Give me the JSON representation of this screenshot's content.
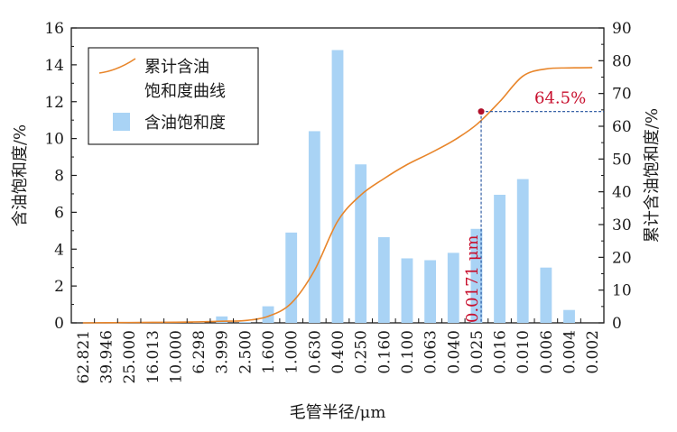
{
  "chart_data": {
    "type": "bar",
    "categories": [
      "62.821",
      "39.946",
      "25.000",
      "16.013",
      "10.000",
      "6.298",
      "3.999",
      "2.500",
      "1.600",
      "1.000",
      "0.630",
      "0.400",
      "0.250",
      "0.160",
      "0.100",
      "0.063",
      "0.040",
      "0.025",
      "0.016",
      "0.010",
      "0.006",
      "0.004",
      "0.002"
    ],
    "xlabel": "毛管半径/μm",
    "ylabel_left": "含油饱和度/%",
    "ylabel_right": "累计含油饱和度/%",
    "ylim_left": [
      0,
      16
    ],
    "ylim_right": [
      0,
      90
    ],
    "yticks_left": [
      "0",
      "2",
      "4",
      "6",
      "8",
      "10",
      "12",
      "14",
      "16"
    ],
    "yticks_right": [
      "0",
      "10",
      "20",
      "30",
      "40",
      "50",
      "60",
      "70",
      "80",
      "90"
    ],
    "series": [
      {
        "name": "含油饱和度",
        "type": "bar",
        "axis": "left",
        "color": "#a9d3f5",
        "values": [
          0,
          0,
          0,
          0,
          0,
          0.05,
          0.35,
          0.05,
          0.9,
          4.9,
          10.4,
          14.8,
          8.6,
          4.65,
          3.5,
          3.4,
          3.8,
          5.1,
          6.95,
          7.8,
          3.0,
          0.7,
          0
        ]
      },
      {
        "name": "累计含油饱和度曲线",
        "type": "line",
        "axis": "right",
        "color": "#e8852a",
        "values": [
          0,
          0.05,
          0.1,
          0.15,
          0.2,
          0.3,
          0.5,
          0.7,
          2,
          6,
          16,
          31,
          39,
          44,
          48.3,
          51.8,
          55.6,
          60.5,
          67.5,
          75.3,
          77.5,
          77.8,
          77.9
        ]
      }
    ],
    "annotation": {
      "point_value": 64.5,
      "point_label": "64.5%",
      "radius_label": "0.0171 μm",
      "radius_position": 17.7,
      "color": "#c8102e",
      "guide_color": "#1f4e9c"
    },
    "legend": {
      "placement": "top-left",
      "line_label_1": "累计含油",
      "line_label_2": "饱和度曲线",
      "bar_label": "含油饱和度"
    },
    "grid": false
  }
}
